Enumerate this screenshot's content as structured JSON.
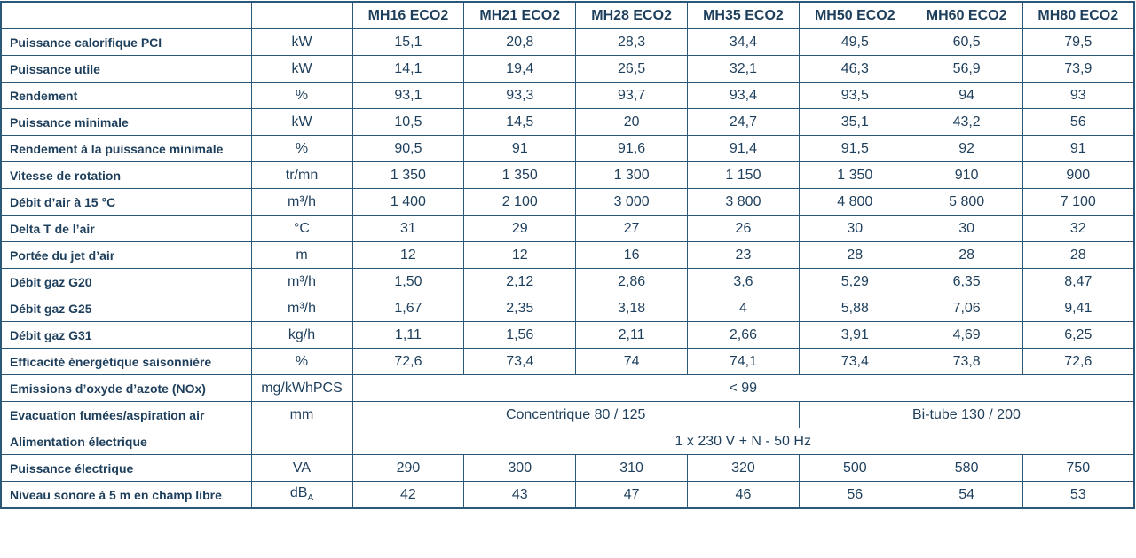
{
  "table": {
    "header": [
      "MH16 ECO2",
      "MH21 ECO2",
      "MH28 ECO2",
      "MH35 ECO2",
      "MH50 ECO2",
      "MH60 ECO2",
      "MH80 ECO2"
    ],
    "rows": [
      {
        "label": "Puissance calorifique PCI",
        "unit": "kW",
        "values": [
          "15,1",
          "20,8",
          "28,3",
          "34,4",
          "49,5",
          "60,5",
          "79,5"
        ]
      },
      {
        "label": "Puissance utile",
        "unit": "kW",
        "values": [
          "14,1",
          "19,4",
          "26,5",
          "32,1",
          "46,3",
          "56,9",
          "73,9"
        ]
      },
      {
        "label": "Rendement",
        "unit": "%",
        "values": [
          "93,1",
          "93,3",
          "93,7",
          "93,4",
          "93,5",
          "94",
          "93"
        ]
      },
      {
        "label": "Puissance minimale",
        "unit": "kW",
        "values": [
          "10,5",
          "14,5",
          "20",
          "24,7",
          "35,1",
          "43,2",
          "56"
        ]
      },
      {
        "label": "Rendement à la puissance minimale",
        "unit": "%",
        "values": [
          "90,5",
          "91",
          "91,6",
          "91,4",
          "91,5",
          "92",
          "91"
        ]
      },
      {
        "label": "Vitesse de rotation",
        "unit": "tr/mn",
        "values": [
          "1 350",
          "1 350",
          "1 300",
          "1 150",
          "1 350",
          "910",
          "900"
        ]
      },
      {
        "label": "Débit d’air à 15 °C",
        "unit": "m³/h",
        "values": [
          "1 400",
          "2 100",
          "3 000",
          "3 800",
          "4 800",
          "5 800",
          "7 100"
        ]
      },
      {
        "label": "Delta T de l’air",
        "unit": "°C",
        "values": [
          "31",
          "29",
          "27",
          "26",
          "30",
          "30",
          "32"
        ]
      },
      {
        "label": "Portée du jet d’air",
        "unit": "m",
        "values": [
          "12",
          "12",
          "16",
          "23",
          "28",
          "28",
          "28"
        ]
      },
      {
        "label": "Débit gaz G20",
        "unit": "m³/h",
        "values": [
          "1,50",
          "2,12",
          "2,86",
          "3,6",
          "5,29",
          "6,35",
          "8,47"
        ]
      },
      {
        "label": "Débit gaz G25",
        "unit": "m³/h",
        "values": [
          "1,67",
          "2,35",
          "3,18",
          "4",
          "5,88",
          "7,06",
          "9,41"
        ]
      },
      {
        "label": "Débit gaz G31",
        "unit": "kg/h",
        "values": [
          "1,11",
          "1,56",
          "2,11",
          "2,66",
          "3,91",
          "4,69",
          "6,25"
        ]
      },
      {
        "label": "Efficacité énergétique saisonnière",
        "unit": "%",
        "values": [
          "72,6",
          "73,4",
          "74",
          "74,1",
          "73,4",
          "73,8",
          "72,6"
        ]
      },
      {
        "label": "Emissions d’oxyde d’azote (NOx)",
        "unit": "mg/kWhPCS",
        "values": [
          "< 99"
        ]
      },
      {
        "label": "Evacuation fumées/aspiration air",
        "unit": "mm",
        "values": [
          "Concentrique 80 / 125",
          "Bi-tube 130 / 200"
        ]
      },
      {
        "label": "Alimentation électrique",
        "values": [
          "1 x 230 V + N - 50 Hz"
        ]
      },
      {
        "label": "Puissance électrique",
        "unit": "VA",
        "values": [
          "290",
          "300",
          "310",
          "320",
          "500",
          "580",
          "750"
        ]
      },
      {
        "label": "Niveau sonore à 5 m en champ libre",
        "unit": {
          "text": "dB",
          "sub": "A"
        },
        "values": [
          "42",
          "43",
          "47",
          "46",
          "56",
          "54",
          "53"
        ]
      }
    ]
  }
}
